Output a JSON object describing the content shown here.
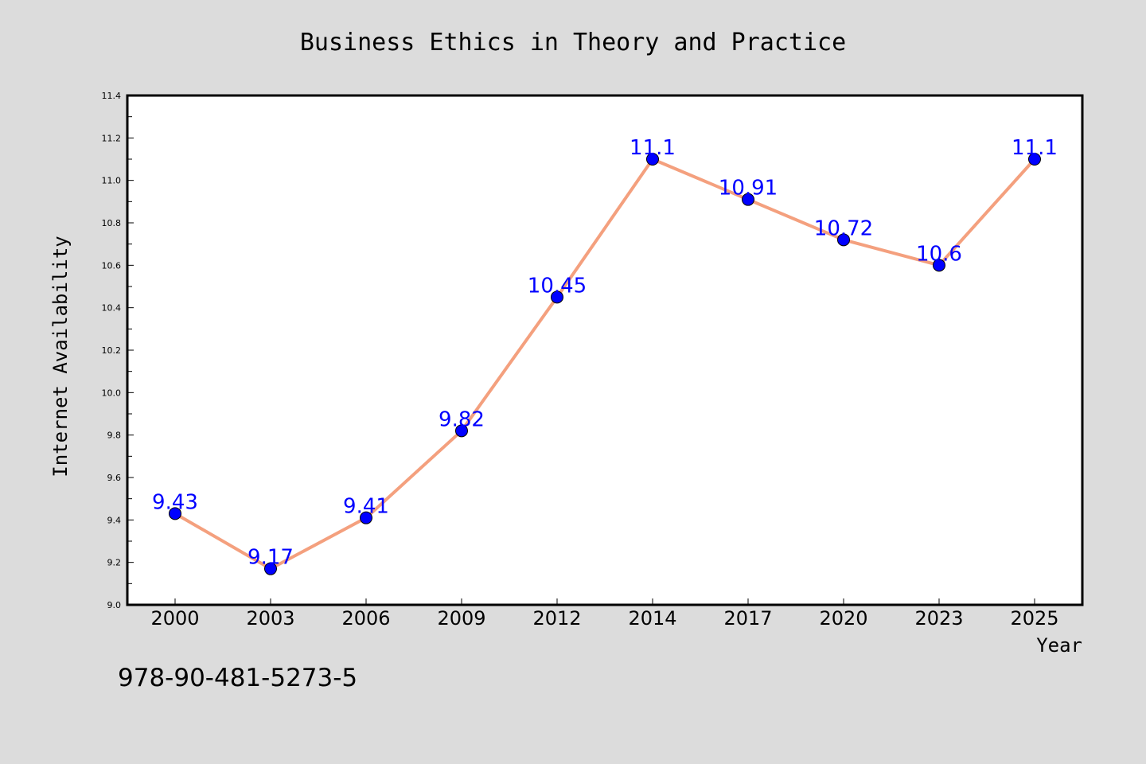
{
  "isbn": "978-90-481-5273-5",
  "colors": {
    "background": "#dcdcdc",
    "plot_background": "#ffffff",
    "line": "#f4a07e",
    "marker": "#0000ff",
    "data_label": "#0000ff"
  },
  "chart_data": {
    "type": "line",
    "title": "Business Ethics in Theory and Practice",
    "xlabel": "Year",
    "ylabel": "Internet Availability",
    "categories": [
      "2000",
      "2003",
      "2006",
      "2009",
      "2012",
      "2014",
      "2017",
      "2020",
      "2023",
      "2025"
    ],
    "series": [
      {
        "values": [
          9.43,
          9.17,
          9.41,
          9.82,
          10.45,
          11.1,
          10.91,
          10.72,
          10.6,
          11.1
        ],
        "data_labels": [
          "9.43",
          "9.17",
          "9.41",
          "9.82",
          "10.45",
          "11.1",
          "10.91",
          "10.72",
          "10.6",
          "11.1"
        ]
      }
    ],
    "ylim": [
      9.0,
      11.4
    ],
    "yticks": [
      "9.0",
      "9.2",
      "9.4",
      "9.6",
      "9.8",
      "10.0",
      "10.2",
      "10.4",
      "10.6",
      "10.8",
      "11.0",
      "11.2",
      "11.4"
    ],
    "grid": false,
    "legend": "none"
  }
}
